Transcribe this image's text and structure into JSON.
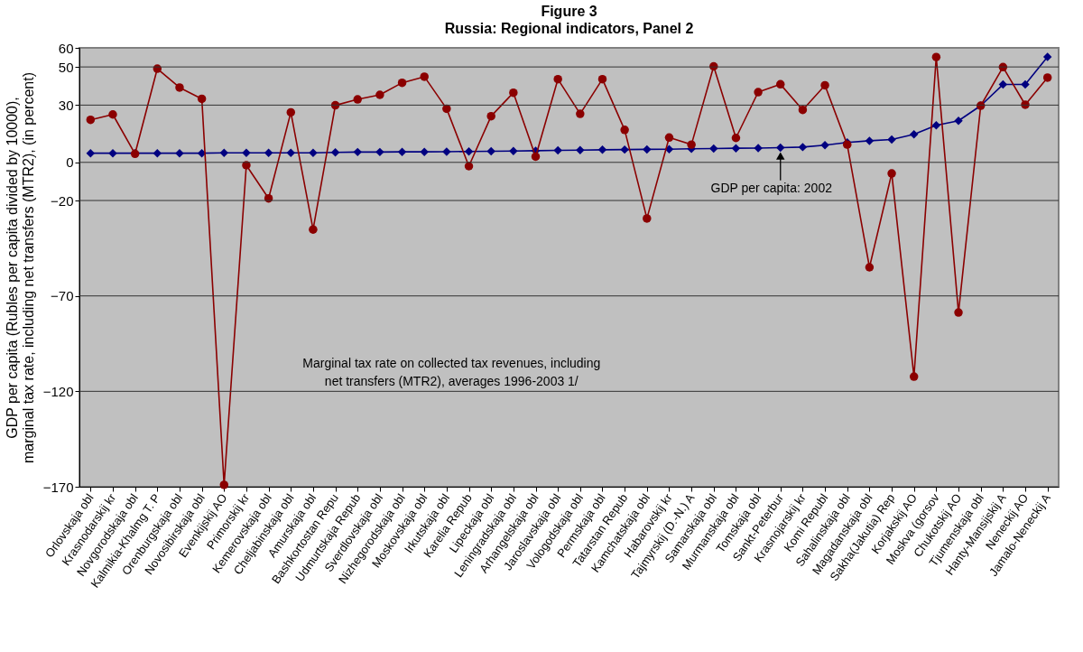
{
  "chart_data": {
    "type": "line",
    "title": "Figure 3",
    "subtitle": "Russia:  Regional indicators, Panel 2",
    "ylabel": "GDP per capita (Rubles per capita divided by 10000),\nmarginal tax rate, including net transfers (MTR2), (in percent)",
    "categories": [
      "Orlovskaja obl",
      "Krasnodarskij kr",
      "Novgorodskaja obl",
      "Kalmikia-Khalmg T. P",
      "Orenburgskaja obl",
      "Novosibirskaja obl",
      "Evenkijskij AO",
      "Primorskij kr",
      "Kemerovskaja obl",
      "Cheljabinskaja obl",
      "Amurskaja obl",
      "Bashkortostan Repu",
      "Udmurtskaja Repub",
      "Sverdlovskaja obl",
      "Nizhegorodskaja obl",
      "Moskovskaja obl",
      "Irkutskaja obl",
      "Karelia Repub",
      "Lipeckaja obl",
      "Leningradskaja obl",
      "Arhangelskaja obl",
      "Jaroslavskaja obl",
      "Vologodskaja obl",
      "Permskaja obl",
      "Tatarstan Repub",
      "Kamchatskaja obl",
      "Habarovskij kr",
      "Tajmyrskij (D.-N.) A",
      "Samarskaja obl",
      "Murmanskaja obl",
      "Tomskaja obl",
      "Sankt-Peterbur",
      "Krasnojarskij kr",
      "Komi Republ",
      "Sahalinskaja obl",
      "Magadanskaja obl",
      "Sakha(Jakutia) Rep",
      "Korjakskij AO",
      "Moskva (gorsov",
      "Chukotskij AO",
      "Tjumenskaja obl",
      "Hanty-Mansijskij A",
      "Neneckij AO",
      "Jamalo-Neneckij A"
    ],
    "series": [
      {
        "color": "#000080",
        "marker": "diamond",
        "values": [
          4.8,
          4.8,
          4.8,
          4.8,
          4.8,
          4.8,
          5.0,
          5.0,
          5.0,
          5.0,
          5.0,
          5.2,
          5.4,
          5.4,
          5.5,
          5.5,
          5.6,
          5.7,
          5.8,
          5.9,
          6.1,
          6.3,
          6.4,
          6.6,
          6.7,
          6.8,
          6.9,
          7.1,
          7.2,
          7.4,
          7.5,
          7.7,
          8.0,
          9.0,
          10.4,
          11.3,
          12.0,
          14.7,
          19.4,
          21.8,
          29.7,
          40.8,
          40.8,
          55.3
        ]
      },
      {
        "color": "#8b0000",
        "marker": "circle",
        "values": [
          22.3,
          25.1,
          4.5,
          49.1,
          39.2,
          33.3,
          -169,
          -1.5,
          -18.9,
          26.2,
          -35.2,
          29.9,
          33.0,
          35.4,
          41.7,
          44.9,
          28.1,
          -2.0,
          24.2,
          36.5,
          3.0,
          43.6,
          25.4,
          43.6,
          17.0,
          -29.4,
          13.0,
          9.3,
          50.3,
          12.8,
          36.8,
          40.9,
          27.5,
          40.4,
          9.3,
          -55.0,
          -5.8,
          -112.3,
          55.2,
          -78.7,
          29.7,
          49.9,
          30.2,
          44.4
        ]
      }
    ],
    "ylim": [
      -170,
      60
    ],
    "yticks": [
      60,
      50,
      30,
      0,
      -20,
      -70,
      -120,
      -170
    ],
    "grid": "y",
    "annotations": [
      "Marginal tax rate on collected tax revenues, including\nnet transfers (MTR2), averages 1996-2003 1/",
      {
        "text": "GDP per capita: 2002",
        "x": "Sankt-Peterbur",
        "y": 7.6
      }
    ],
    "line_style": "solid"
  }
}
